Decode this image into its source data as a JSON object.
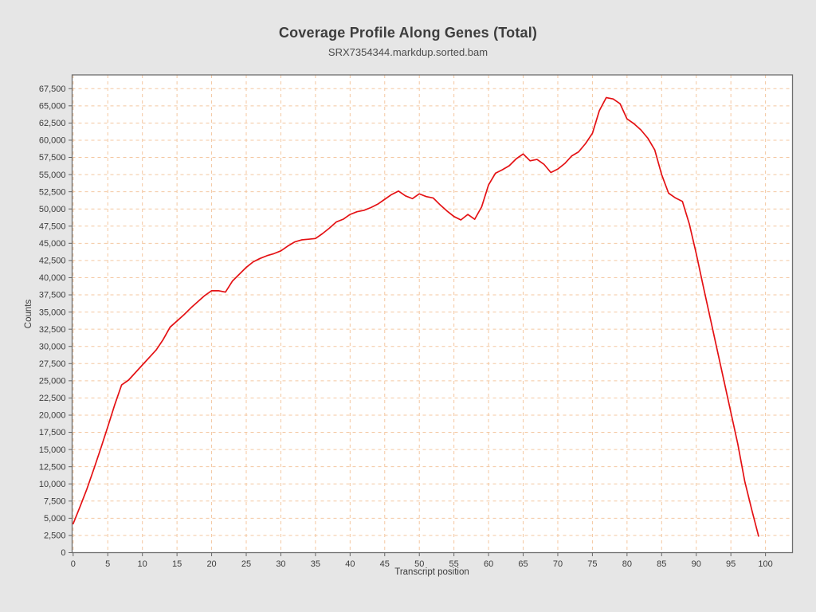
{
  "header": {
    "title": "Coverage Profile Along Genes (Total)",
    "subtitle": "SRX7354344.markdup.sorted.bam"
  },
  "axes": {
    "x_label": "Transcript position",
    "y_label": "Counts"
  },
  "colors": {
    "background": "#e6e6e6",
    "plot_background": "#ffffff",
    "grid": "#f4c7a0",
    "border": "#6e6e6e",
    "tick": "#666666",
    "tick_text": "#3c3c3c",
    "line": "#e41114"
  },
  "chart_data": {
    "type": "line",
    "title": "Coverage Profile Along Genes (Total)",
    "subtitle": "SRX7354344.markdup.sorted.bam",
    "xlabel": "Transcript position",
    "ylabel": "Counts",
    "xlim": [
      -0.15,
      103.9
    ],
    "ylim": [
      0,
      69500
    ],
    "grid": true,
    "legend": "none",
    "x_ticks": [
      0,
      5,
      10,
      15,
      20,
      25,
      30,
      35,
      40,
      45,
      50,
      55,
      60,
      65,
      70,
      75,
      80,
      85,
      90,
      95,
      100
    ],
    "x_tick_labels": [
      "0",
      "5",
      "10",
      "15",
      "20",
      "25",
      "30",
      "35",
      "40",
      "45",
      "50",
      "55",
      "60",
      "65",
      "70",
      "75",
      "80",
      "85",
      "90",
      "95",
      "100"
    ],
    "y_ticks": [
      0,
      2500,
      5000,
      7500,
      10000,
      12500,
      15000,
      17500,
      20000,
      22500,
      25000,
      27500,
      30000,
      32500,
      35000,
      37500,
      40000,
      42500,
      45000,
      47500,
      50000,
      52500,
      55000,
      57500,
      60000,
      62500,
      65000,
      67500
    ],
    "y_tick_labels": [
      "0",
      "2,500",
      "5,000",
      "7,500",
      "10,000",
      "12,500",
      "15,000",
      "17,500",
      "20,000",
      "22,500",
      "25,000",
      "27,500",
      "30,000",
      "32,500",
      "35,000",
      "37,500",
      "40,000",
      "42,500",
      "45,000",
      "47,500",
      "50,000",
      "52,500",
      "55,000",
      "57,500",
      "60,000",
      "62,500",
      "65,000",
      "67,500"
    ],
    "x": [
      0,
      1,
      2,
      3,
      4,
      5,
      6,
      7,
      8,
      9,
      10,
      11,
      12,
      13,
      14,
      15,
      16,
      17,
      18,
      19,
      20,
      21,
      22,
      23,
      24,
      25,
      26,
      27,
      28,
      29,
      30,
      31,
      32,
      33,
      34,
      35,
      36,
      37,
      38,
      39,
      40,
      41,
      42,
      43,
      44,
      45,
      46,
      47,
      48,
      49,
      50,
      51,
      52,
      53,
      54,
      55,
      56,
      57,
      58,
      59,
      60,
      61,
      62,
      63,
      64,
      65,
      66,
      67,
      68,
      69,
      70,
      71,
      72,
      73,
      74,
      75,
      76,
      77,
      78,
      79,
      80,
      81,
      82,
      83,
      84,
      85,
      86,
      87,
      88,
      89,
      90,
      91,
      92,
      93,
      94,
      95,
      96,
      97,
      98,
      99
    ],
    "y": [
      4200,
      6700,
      9300,
      12200,
      15200,
      18300,
      21500,
      24400,
      25100,
      26200,
      27300,
      28400,
      29500,
      31000,
      32800,
      33700,
      34600,
      35600,
      36500,
      37400,
      38100,
      38100,
      37900,
      39500,
      40500,
      41500,
      42300,
      42800,
      43200,
      43500,
      43900,
      44600,
      45200,
      45500,
      45600,
      45700,
      46400,
      47200,
      48100,
      48500,
      49200,
      49600,
      49800,
      50200,
      50700,
      51400,
      52100,
      52600,
      51900,
      51500,
      52200,
      51800,
      51600,
      50600,
      49700,
      48900,
      48400,
      49200,
      48500,
      50300,
      53500,
      55200,
      55700,
      56300,
      57300,
      58000,
      57000,
      57200,
      56500,
      55300,
      55800,
      56600,
      57700,
      58300,
      59500,
      61000,
      64300,
      66200,
      66000,
      65300,
      63100,
      62400,
      61500,
      60300,
      58600,
      55000,
      52300,
      51600,
      51100,
      47800,
      43500,
      38800,
      34200,
      29600,
      25000,
      20400,
      15800,
      10400,
      6300,
      2400
    ]
  }
}
